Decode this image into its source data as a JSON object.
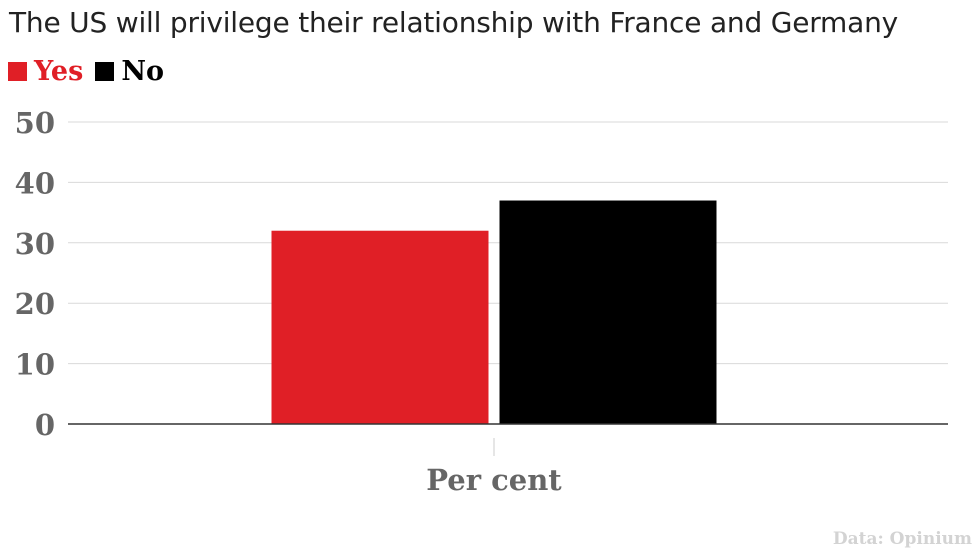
{
  "title": "The US will privilege their relationship with France and Germany",
  "source": "Data: Opinium",
  "colors": {
    "yes": "#e01f26",
    "no": "#000000",
    "grid": "#d9d9d9",
    "axis": "#333333",
    "tick_text": "#666666"
  },
  "chart_data": {
    "type": "bar",
    "title": "The US will privilege their relationship with France and Germany",
    "categories": [
      "Per cent"
    ],
    "series": [
      {
        "name": "Yes",
        "values": [
          32
        ]
      },
      {
        "name": "No",
        "values": [
          37
        ]
      }
    ],
    "xlabel": "Per cent",
    "ylabel": "",
    "ylim": [
      0,
      50
    ],
    "yticks": [
      "0",
      "10",
      "20",
      "30",
      "40",
      "50"
    ],
    "grid": true,
    "legend": "top-left"
  }
}
